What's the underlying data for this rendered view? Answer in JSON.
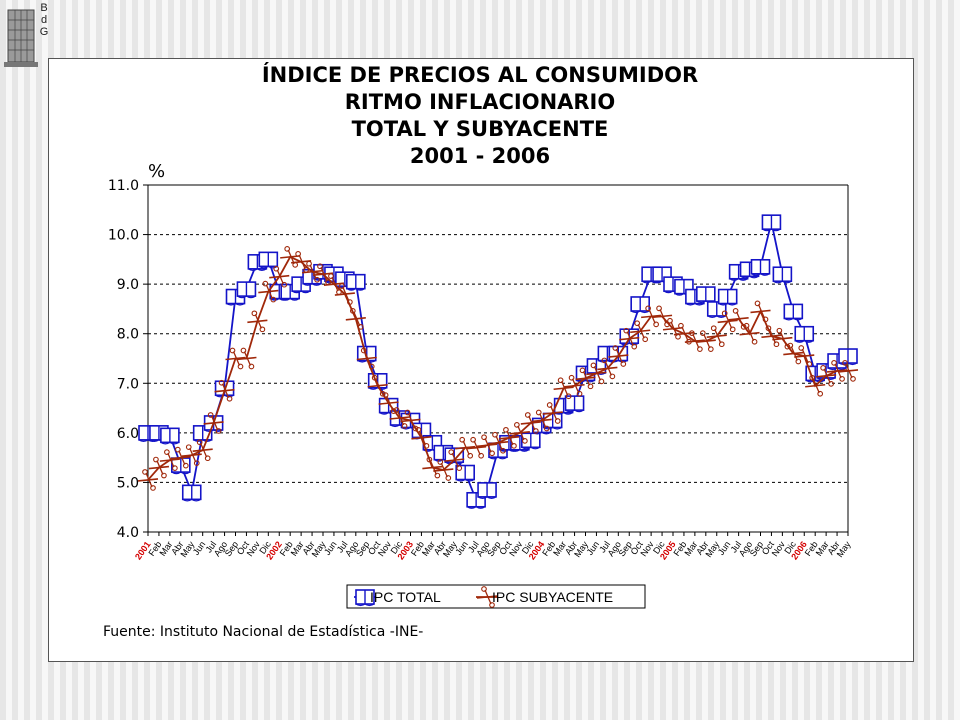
{
  "logo": {
    "letters": [
      "B",
      "d",
      "G"
    ]
  },
  "chart_data": {
    "type": "line",
    "title": [
      "ÍNDICE DE PRECIOS AL CONSUMIDOR",
      "RITMO INFLACIONARIO",
      "TOTAL Y SUBYACENTE",
      "2001 - 2006"
    ],
    "ylabel": "%",
    "ylim": [
      4.0,
      11.0
    ],
    "yticks": [
      "4.0",
      "5.0",
      "6.0",
      "7.0",
      "8.0",
      "9.0",
      "10.0",
      "11.0"
    ],
    "grid": "horizontal dashed",
    "legend_position": "bottom",
    "categories": [
      "2001",
      "Feb",
      "Mar",
      "Abr",
      "May",
      "Jun",
      "Jul",
      "Ago",
      "Sep",
      "Oct",
      "Nov",
      "Dic",
      "2002",
      "Feb",
      "Mar",
      "Abr",
      "May",
      "Jun",
      "Jul",
      "Ago",
      "Sep",
      "Oct",
      "Nov",
      "Dic",
      "2003",
      "Feb",
      "Mar",
      "Abr",
      "May",
      "Jun",
      "Jul",
      "Ago",
      "Sep",
      "Oct",
      "Nov",
      "Dic",
      "2004",
      "Feb",
      "Mar",
      "Abr",
      "May",
      "Jun",
      "Jul",
      "Ago",
      "Sep",
      "Oct",
      "Nov",
      "Dic",
      "2005",
      "Feb",
      "Mar",
      "Abr",
      "May",
      "Jun",
      "Jul",
      "Ago",
      "Sep",
      "Oct",
      "Nov",
      "Dic",
      "2006",
      "Feb",
      "Mar",
      "Abr",
      "May"
    ],
    "year_labels": [
      "2001",
      "2002",
      "2003",
      "2004",
      "2005",
      "2006"
    ],
    "series": [
      {
        "name": "IPC TOTAL",
        "color": "#1414c8",
        "marker": "book-icon",
        "values": [
          6.0,
          6.0,
          5.95,
          5.35,
          4.8,
          6.0,
          6.2,
          6.9,
          8.75,
          8.9,
          9.45,
          9.5,
          8.85,
          8.85,
          9.0,
          9.15,
          9.25,
          9.2,
          9.1,
          9.05,
          7.6,
          7.05,
          6.55,
          6.3,
          6.25,
          6.05,
          5.8,
          5.6,
          5.55,
          5.2,
          4.65,
          4.85,
          5.65,
          5.8,
          5.8,
          5.85,
          6.15,
          6.25,
          6.55,
          6.6,
          7.2,
          7.35,
          7.6,
          7.6,
          7.95,
          8.6,
          9.2,
          9.2,
          9.0,
          8.95,
          8.75,
          8.8,
          8.5,
          8.75,
          9.25,
          9.3,
          9.35,
          10.25,
          9.2,
          8.45,
          8.0,
          7.2,
          7.25,
          7.45,
          7.55
        ]
      },
      {
        "name": "IPC SUBYACENTE",
        "color": "#a0280a",
        "marker": "scissors-icon",
        "values": [
          5.05,
          5.3,
          5.45,
          5.5,
          5.55,
          5.65,
          6.2,
          6.85,
          7.5,
          7.5,
          8.25,
          8.85,
          9.15,
          9.55,
          9.45,
          9.25,
          9.2,
          9.0,
          8.8,
          8.3,
          7.5,
          6.95,
          6.6,
          6.3,
          6.25,
          5.9,
          5.3,
          5.25,
          5.45,
          5.7,
          5.7,
          5.75,
          5.8,
          5.9,
          6.0,
          6.2,
          6.25,
          6.4,
          6.9,
          6.95,
          7.1,
          7.2,
          7.3,
          7.55,
          7.9,
          8.05,
          8.35,
          8.35,
          8.1,
          8.0,
          7.85,
          7.85,
          7.95,
          8.25,
          8.3,
          8.0,
          8.45,
          7.95,
          7.9,
          7.6,
          7.55,
          6.95,
          7.15,
          7.25,
          7.25
        ]
      }
    ]
  },
  "source": "Fuente: Instituto Nacional de Estadística -INE-"
}
